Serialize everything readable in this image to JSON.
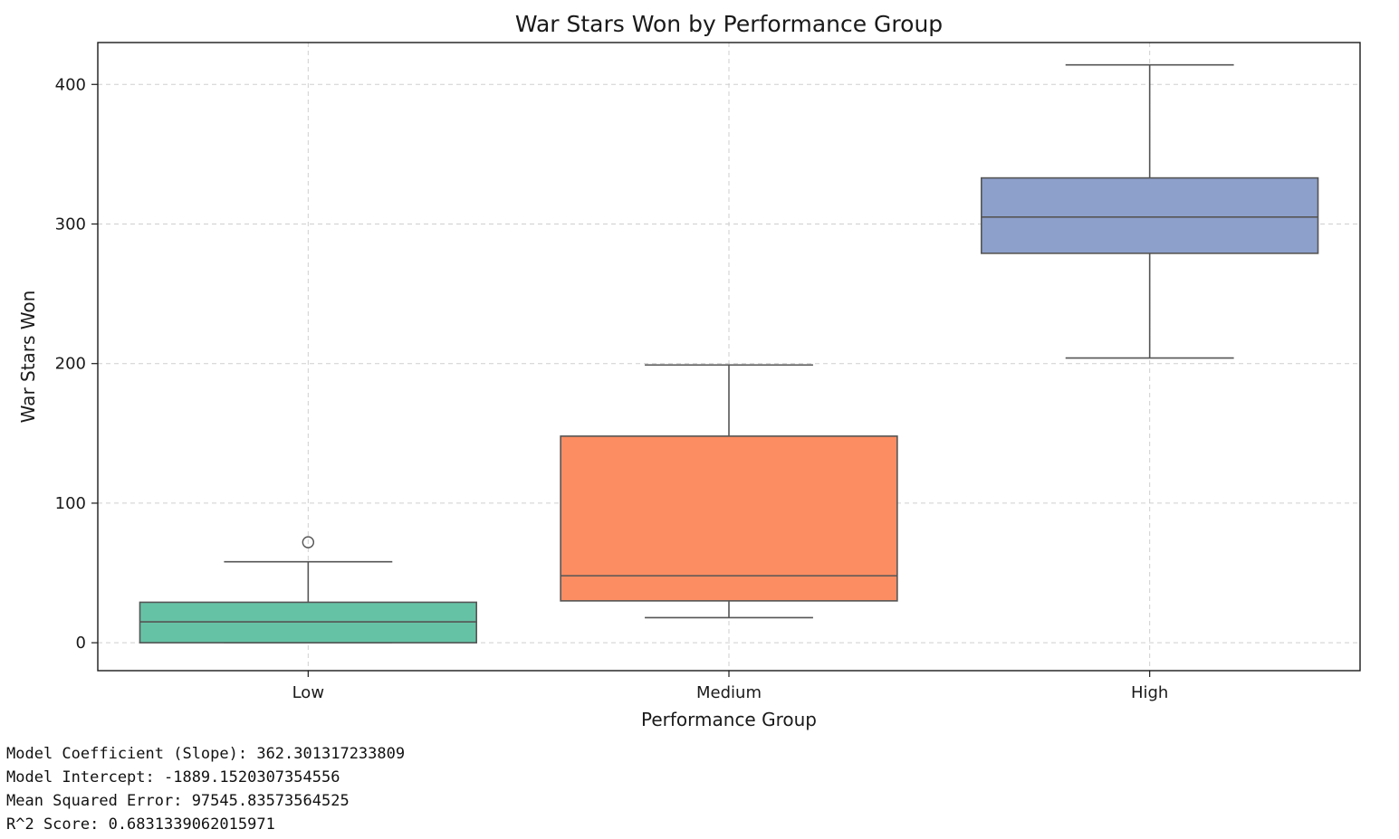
{
  "chart_data": {
    "type": "box",
    "title": "War Stars Won by Performance Group",
    "xlabel": "Performance Group",
    "ylabel": "War Stars Won",
    "categories": [
      "Low",
      "Medium",
      "High"
    ],
    "ylim": [
      -20,
      430
    ],
    "yticks": [
      0,
      100,
      200,
      300,
      400
    ],
    "grid": true,
    "boxes": [
      {
        "category": "Low",
        "whisker_low": 0,
        "q1": 0,
        "median": 15,
        "q3": 29,
        "whisker_high": 58,
        "outliers": [
          72
        ],
        "color": "#66c2a5"
      },
      {
        "category": "Medium",
        "whisker_low": 18,
        "q1": 30,
        "median": 48,
        "q3": 148,
        "whisker_high": 199,
        "outliers": [],
        "color": "#fc8d62"
      },
      {
        "category": "High",
        "whisker_low": 204,
        "q1": 279,
        "median": 305,
        "q3": 333,
        "whisker_high": 414,
        "outliers": [],
        "color": "#8da0cb"
      }
    ]
  },
  "output": {
    "lines": [
      "Model Coefficient (Slope): 362.301317233809",
      "Model Intercept: -1889.1520307354556",
      "Mean Squared Error: 97545.83573564525",
      "R^2 Score: 0.6831339062015971"
    ]
  }
}
